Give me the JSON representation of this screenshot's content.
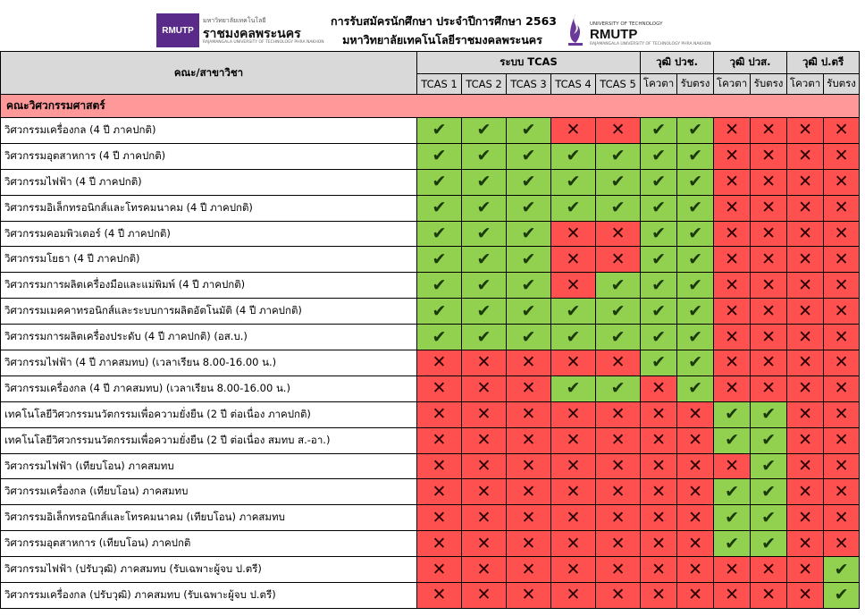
{
  "header": {
    "logo_left": {
      "box_text": "RMUTP",
      "small_text": "มหาวิทยาลัยเทคโนโลยี",
      "big_text": "ราชมงคลพระนคร",
      "sub_text": "RAJAMANGALA UNIVERSITY OF TECHNOLOGY PHRA NAKHON"
    },
    "title_line1": "การรับสมัครนักศึกษา ประจำปีการศึกษา 2563",
    "title_line2": "มหาวิทยาลัยเทคโนโลยีราชมงคลพระนคร",
    "logo_right": {
      "small_text": "UNIVERSITY OF TECHNOLOGY",
      "big_text": "RMUTP",
      "sub_text": "RAJAMANGALA UNIVERSITY OF TECHNOLOGY PHRA NAKHON"
    }
  },
  "table": {
    "col_program": "คณะ/สาขาวิชา",
    "group_tcas": "ระบบ TCAS",
    "group_pwch": "วุฒิ ปวช.",
    "group_pws": "วุฒิ ปวส.",
    "group_bachelor": "วุฒิ ป.ตรี",
    "sub_tcas": [
      "TCAS 1",
      "TCAS 2",
      "TCAS 3",
      "TCAS 4",
      "TCAS 5"
    ],
    "sub_quota": "โควตา",
    "sub_direct": "รับตรง",
    "faculty": "คณะวิศวกรรมศาสตร์",
    "symbols": {
      "yes": "✔",
      "no": "✕"
    },
    "colors": {
      "yes": "#92d050",
      "no": "#ff5050",
      "faculty": "#ff9999",
      "header": "#d9d9d9"
    },
    "rows": [
      {
        "name": "วิศวกรรมเครื่องกล (4 ปี ภาคปกติ)",
        "marks": [
          1,
          1,
          1,
          0,
          0,
          1,
          1,
          0,
          0,
          0,
          0
        ]
      },
      {
        "name": "วิศวกรรมอุตสาหการ (4 ปี ภาคปกติ)",
        "marks": [
          1,
          1,
          1,
          1,
          1,
          1,
          1,
          0,
          0,
          0,
          0
        ]
      },
      {
        "name": "วิศวกรรมไฟฟ้า (4 ปี ภาคปกติ)",
        "marks": [
          1,
          1,
          1,
          1,
          1,
          1,
          1,
          0,
          0,
          0,
          0
        ]
      },
      {
        "name": "วิศวกรรมอิเล็กทรอนิกส์และโทรคมนาคม (4 ปี ภาคปกติ)",
        "marks": [
          1,
          1,
          1,
          1,
          1,
          1,
          1,
          0,
          0,
          0,
          0
        ]
      },
      {
        "name": "วิศวกรรมคอมพิวเตอร์ (4 ปี ภาคปกติ)",
        "marks": [
          1,
          1,
          1,
          0,
          0,
          1,
          1,
          0,
          0,
          0,
          0
        ]
      },
      {
        "name": "วิศวกรรมโยธา (4 ปี ภาคปกติ)",
        "marks": [
          1,
          1,
          1,
          0,
          0,
          1,
          1,
          0,
          0,
          0,
          0
        ]
      },
      {
        "name": "วิศวกรรมการผลิตเครื่องมือและแม่พิมพ์ (4 ปี ภาคปกติ)",
        "marks": [
          1,
          1,
          1,
          0,
          1,
          1,
          1,
          0,
          0,
          0,
          0
        ]
      },
      {
        "name": "วิศวกรรมเมคคาทรอนิกส์และระบบการผลิตอัตโนมัติ (4 ปี ภาคปกติ)",
        "marks": [
          1,
          1,
          1,
          1,
          1,
          1,
          1,
          0,
          0,
          0,
          0
        ]
      },
      {
        "name": "วิศวกรรมการผลิตเครื่องประดับ (4 ปี ภาคปกติ) (อส.บ.)",
        "marks": [
          1,
          1,
          1,
          1,
          1,
          1,
          1,
          0,
          0,
          0,
          0
        ]
      },
      {
        "name": "วิศวกรรมไฟฟ้า (4 ปี ภาคสมทบ) (เวลาเรียน 8.00-16.00 น.)",
        "marks": [
          0,
          0,
          0,
          0,
          0,
          1,
          1,
          0,
          0,
          0,
          0
        ]
      },
      {
        "name": "วิศวกรรมเครื่องกล (4 ปี ภาคสมทบ) (เวลาเรียน 8.00-16.00 น.)",
        "marks": [
          0,
          0,
          0,
          1,
          1,
          0,
          1,
          0,
          0,
          0,
          0
        ]
      },
      {
        "name": "เทคโนโลยีวิศวกรรมนวัตกรรมเพื่อความยั่งยืน (2 ปี ต่อเนื่อง ภาคปกติ)",
        "marks": [
          0,
          0,
          0,
          0,
          0,
          0,
          0,
          1,
          1,
          0,
          0
        ]
      },
      {
        "name": "เทคโนโลยีวิศวกรรมนวัตกรรมเพื่อความยั่งยืน (2 ปี ต่อเนื่อง สมทบ ส.-อา.)",
        "marks": [
          0,
          0,
          0,
          0,
          0,
          0,
          0,
          1,
          1,
          0,
          0
        ]
      },
      {
        "name": "วิศวกรรมไฟฟ้า (เทียบโอน) ภาคสมทบ",
        "marks": [
          0,
          0,
          0,
          0,
          0,
          0,
          0,
          0,
          1,
          0,
          0
        ]
      },
      {
        "name": "วิศวกรรมเครื่องกล (เทียบโอน) ภาคสมทบ",
        "marks": [
          0,
          0,
          0,
          0,
          0,
          0,
          0,
          1,
          1,
          0,
          0
        ]
      },
      {
        "name": "วิศวกรรมอิเล็กทรอนิกส์และโทรคมนาคม (เทียบโอน) ภาคสมทบ",
        "marks": [
          0,
          0,
          0,
          0,
          0,
          0,
          0,
          1,
          1,
          0,
          0
        ]
      },
      {
        "name": "วิศวกรรมอุตสาหการ (เทียบโอน) ภาคปกติ",
        "marks": [
          0,
          0,
          0,
          0,
          0,
          0,
          0,
          1,
          1,
          0,
          0
        ]
      },
      {
        "name": "วิศวกรรมไฟฟ้า (ปรับวุฒิ) ภาคสมทบ (รับเฉพาะผู้จบ ป.ตรี)",
        "marks": [
          0,
          0,
          0,
          0,
          0,
          0,
          0,
          0,
          0,
          0,
          1
        ]
      },
      {
        "name": "วิศวกรรมเครื่องกล (ปรับวุฒิ) ภาคสมทบ (รับเฉพาะผู้จบ ป.ตรี)",
        "marks": [
          0,
          0,
          0,
          0,
          0,
          0,
          0,
          0,
          0,
          0,
          1
        ]
      }
    ]
  }
}
